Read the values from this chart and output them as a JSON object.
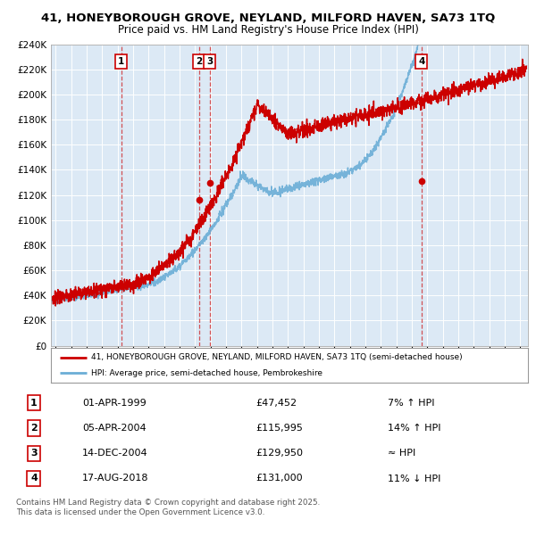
{
  "title_line1": "41, HONEYBOROUGH GROVE, NEYLAND, MILFORD HAVEN, SA73 1TQ",
  "title_line2": "Price paid vs. HM Land Registry's House Price Index (HPI)",
  "hpi_color": "#6baed6",
  "price_color": "#CC0000",
  "plot_bg": "#dce9f5",
  "ylim": [
    0,
    240000
  ],
  "yticks": [
    0,
    20000,
    40000,
    60000,
    80000,
    100000,
    120000,
    140000,
    160000,
    180000,
    200000,
    220000,
    240000
  ],
  "transactions": [
    {
      "num": 1,
      "date": "01-APR-1999",
      "price": 47452,
      "year": 1999.25
    },
    {
      "num": 2,
      "date": "05-APR-2004",
      "price": 115995,
      "year": 2004.27
    },
    {
      "num": 3,
      "date": "14-DEC-2004",
      "price": 129950,
      "year": 2004.96
    },
    {
      "num": 4,
      "date": "17-AUG-2018",
      "price": 131000,
      "year": 2018.63
    }
  ],
  "legend_label1": "41, HONEYBOROUGH GROVE, NEYLAND, MILFORD HAVEN, SA73 1TQ (semi-detached house)",
  "legend_label2": "HPI: Average price, semi-detached house, Pembrokeshire",
  "footer": "Contains HM Land Registry data © Crown copyright and database right 2025.\nThis data is licensed under the Open Government Licence v3.0.",
  "xmin": 1994.7,
  "xmax": 2025.5,
  "table_rows": [
    [
      1,
      "01-APR-1999",
      "£47,452",
      "7% ↑ HPI"
    ],
    [
      2,
      "05-APR-2004",
      "£115,995",
      "14% ↑ HPI"
    ],
    [
      3,
      "14-DEC-2004",
      "£129,950",
      "≈ HPI"
    ],
    [
      4,
      "17-AUG-2018",
      "£131,000",
      "11% ↓ HPI"
    ]
  ]
}
